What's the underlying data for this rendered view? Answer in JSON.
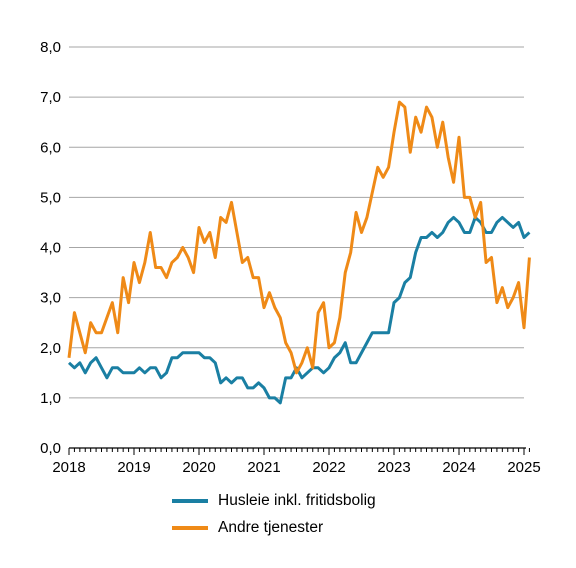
{
  "chart_data": {
    "type": "line",
    "title": "",
    "xlabel": "",
    "ylabel": "",
    "ylim": [
      0,
      8
    ],
    "xlim": [
      "2018-01",
      "2025-02"
    ],
    "grid": "horizontal",
    "legend_placement": "bottom",
    "y_ticks": [
      "0,0",
      "1,0",
      "2,0",
      "3,0",
      "4,0",
      "5,0",
      "6,0",
      "7,0",
      "8,0"
    ],
    "x_ticks": [
      "2018",
      "2019",
      "2020",
      "2021",
      "2022",
      "2023",
      "2024",
      "2025"
    ],
    "x": [
      "2018-01",
      "2018-02",
      "2018-03",
      "2018-04",
      "2018-05",
      "2018-06",
      "2018-07",
      "2018-08",
      "2018-09",
      "2018-10",
      "2018-11",
      "2018-12",
      "2019-01",
      "2019-02",
      "2019-03",
      "2019-04",
      "2019-05",
      "2019-06",
      "2019-07",
      "2019-08",
      "2019-09",
      "2019-10",
      "2019-11",
      "2019-12",
      "2020-01",
      "2020-02",
      "2020-03",
      "2020-04",
      "2020-05",
      "2020-06",
      "2020-07",
      "2020-08",
      "2020-09",
      "2020-10",
      "2020-11",
      "2020-12",
      "2021-01",
      "2021-02",
      "2021-03",
      "2021-04",
      "2021-05",
      "2021-06",
      "2021-07",
      "2021-08",
      "2021-09",
      "2021-10",
      "2021-11",
      "2021-12",
      "2022-01",
      "2022-02",
      "2022-03",
      "2022-04",
      "2022-05",
      "2022-06",
      "2022-07",
      "2022-08",
      "2022-09",
      "2022-10",
      "2022-11",
      "2022-12",
      "2023-01",
      "2023-02",
      "2023-03",
      "2023-04",
      "2023-05",
      "2023-06",
      "2023-07",
      "2023-08",
      "2023-09",
      "2023-10",
      "2023-11",
      "2023-12",
      "2024-01",
      "2024-02",
      "2024-03",
      "2024-04",
      "2024-05",
      "2024-06",
      "2024-07",
      "2024-08",
      "2024-09",
      "2024-10",
      "2024-11",
      "2024-12",
      "2025-01",
      "2025-02"
    ],
    "series": [
      {
        "name": "Husleie inkl. fritidsbolig",
        "color": "#1a7fa3",
        "values": [
          1.7,
          1.6,
          1.7,
          1.5,
          1.7,
          1.8,
          1.6,
          1.4,
          1.6,
          1.6,
          1.5,
          1.5,
          1.5,
          1.6,
          1.5,
          1.6,
          1.6,
          1.4,
          1.5,
          1.8,
          1.8,
          1.9,
          1.9,
          1.9,
          1.9,
          1.8,
          1.8,
          1.7,
          1.3,
          1.4,
          1.3,
          1.4,
          1.4,
          1.2,
          1.2,
          1.3,
          1.2,
          1.0,
          1.0,
          0.9,
          1.4,
          1.4,
          1.6,
          1.4,
          1.5,
          1.6,
          1.6,
          1.5,
          1.6,
          1.8,
          1.9,
          2.1,
          1.7,
          1.7,
          1.9,
          2.1,
          2.3,
          2.3,
          2.3,
          2.3,
          2.9,
          3.0,
          3.3,
          3.4,
          3.9,
          4.2,
          4.2,
          4.3,
          4.2,
          4.3,
          4.5,
          4.6,
          4.5,
          4.3,
          4.3,
          4.6,
          4.5,
          4.3,
          4.3,
          4.5,
          4.6,
          4.5,
          4.4,
          4.5,
          4.2,
          4.3
        ]
      },
      {
        "name": "Andre tjenester",
        "color": "#ef8a17",
        "values": [
          1.8,
          2.7,
          2.3,
          1.9,
          2.5,
          2.3,
          2.3,
          2.6,
          2.9,
          2.3,
          3.4,
          2.9,
          3.7,
          3.3,
          3.7,
          4.3,
          3.6,
          3.6,
          3.4,
          3.7,
          3.8,
          4.0,
          3.8,
          3.5,
          4.4,
          4.1,
          4.3,
          3.8,
          4.6,
          4.5,
          4.9,
          4.3,
          3.7,
          3.8,
          3.4,
          3.4,
          2.8,
          3.1,
          2.8,
          2.6,
          2.1,
          1.9,
          1.5,
          1.7,
          2.0,
          1.6,
          2.7,
          2.9,
          2.0,
          2.1,
          2.6,
          3.5,
          3.9,
          4.7,
          4.3,
          4.6,
          5.1,
          5.6,
          5.4,
          5.6,
          6.3,
          6.9,
          6.8,
          5.9,
          6.6,
          6.3,
          6.8,
          6.6,
          6.0,
          6.5,
          5.8,
          5.3,
          6.2,
          5.0,
          5.0,
          4.6,
          4.9,
          3.7,
          3.8,
          2.9,
          3.2,
          2.8,
          3.0,
          3.3,
          2.4,
          3.8
        ]
      }
    ]
  }
}
